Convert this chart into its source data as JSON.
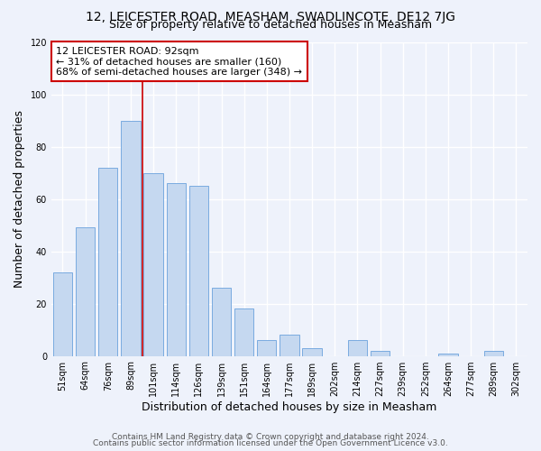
{
  "title": "12, LEICESTER ROAD, MEASHAM, SWADLINCOTE, DE12 7JG",
  "subtitle": "Size of property relative to detached houses in Measham",
  "xlabel": "Distribution of detached houses by size in Measham",
  "ylabel": "Number of detached properties",
  "bar_labels": [
    "51sqm",
    "64sqm",
    "76sqm",
    "89sqm",
    "101sqm",
    "114sqm",
    "126sqm",
    "139sqm",
    "151sqm",
    "164sqm",
    "177sqm",
    "189sqm",
    "202sqm",
    "214sqm",
    "227sqm",
    "239sqm",
    "252sqm",
    "264sqm",
    "277sqm",
    "289sqm",
    "302sqm"
  ],
  "bar_values": [
    32,
    49,
    72,
    90,
    70,
    66,
    65,
    26,
    18,
    6,
    8,
    3,
    0,
    6,
    2,
    0,
    0,
    1,
    0,
    2,
    0
  ],
  "bar_color": "#c5d8f0",
  "bar_edge_color": "#7aabe0",
  "annotation_box_text_line1": "12 LEICESTER ROAD: 92sqm",
  "annotation_box_text_line2": "← 31% of detached houses are smaller (160)",
  "annotation_box_text_line3": "68% of semi-detached houses are larger (348) →",
  "annotation_box_color": "#ffffff",
  "annotation_box_edge_color": "#cc0000",
  "vline_color": "#cc0000",
  "vline_x": 3.5,
  "ylim": [
    0,
    120
  ],
  "yticks": [
    0,
    20,
    40,
    60,
    80,
    100,
    120
  ],
  "footer_line1": "Contains HM Land Registry data © Crown copyright and database right 2024.",
  "footer_line2": "Contains public sector information licensed under the Open Government Licence v3.0.",
  "bg_color": "#eef2fb",
  "grid_color": "#ffffff",
  "title_fontsize": 10,
  "subtitle_fontsize": 9,
  "axis_label_fontsize": 9,
  "tick_fontsize": 7,
  "annotation_fontsize": 8,
  "footer_fontsize": 6.5
}
